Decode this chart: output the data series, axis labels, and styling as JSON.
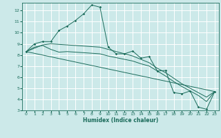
{
  "xlabel": "Humidex (Indice chaleur)",
  "bg_color": "#cce9e9",
  "grid_color": "#ffffff",
  "line_color": "#1a6b5a",
  "xlim": [
    -0.5,
    23.5
  ],
  "ylim": [
    3,
    12.7
  ],
  "xticks": [
    0,
    1,
    2,
    3,
    4,
    5,
    6,
    7,
    8,
    9,
    10,
    11,
    12,
    13,
    14,
    15,
    16,
    17,
    18,
    19,
    20,
    21,
    22,
    23
  ],
  "yticks": [
    3,
    4,
    5,
    6,
    7,
    8,
    9,
    10,
    11,
    12
  ],
  "line_jagged": {
    "x": [
      0,
      1,
      2,
      3,
      4,
      5,
      6,
      7,
      8,
      9,
      10,
      11,
      12,
      13,
      14,
      15,
      16,
      17,
      18,
      19,
      20,
      21,
      22,
      23
    ],
    "y": [
      8.3,
      9.0,
      9.2,
      9.2,
      10.2,
      10.6,
      11.1,
      11.7,
      12.5,
      12.3,
      8.7,
      8.1,
      8.1,
      8.35,
      7.7,
      7.85,
      6.55,
      6.6,
      4.6,
      4.5,
      4.75,
      3.3,
      3.1,
      4.7
    ]
  },
  "line_smooth1": {
    "x": [
      0,
      1,
      2,
      3,
      4,
      5,
      6,
      7,
      8,
      9,
      10,
      11,
      12,
      13,
      14,
      15,
      16,
      17,
      18,
      19,
      20,
      21,
      22,
      23
    ],
    "y": [
      8.3,
      8.7,
      8.85,
      8.5,
      8.25,
      8.3,
      8.25,
      8.2,
      8.15,
      8.1,
      7.9,
      7.75,
      7.6,
      7.45,
      7.2,
      7.0,
      6.55,
      6.1,
      5.6,
      5.15,
      4.75,
      4.35,
      3.8,
      4.7
    ]
  },
  "line_smooth2": {
    "x": [
      0,
      23
    ],
    "y": [
      8.3,
      4.7
    ]
  },
  "line_smooth3": {
    "x": [
      0,
      2,
      3,
      9,
      10,
      11,
      12,
      13,
      14,
      15,
      16,
      17,
      18,
      19,
      20,
      21,
      22,
      23
    ],
    "y": [
      8.3,
      8.9,
      9.0,
      8.7,
      8.5,
      8.3,
      8.1,
      7.9,
      7.6,
      7.3,
      6.8,
      6.4,
      5.9,
      5.4,
      5.0,
      4.6,
      4.2,
      4.7
    ]
  }
}
